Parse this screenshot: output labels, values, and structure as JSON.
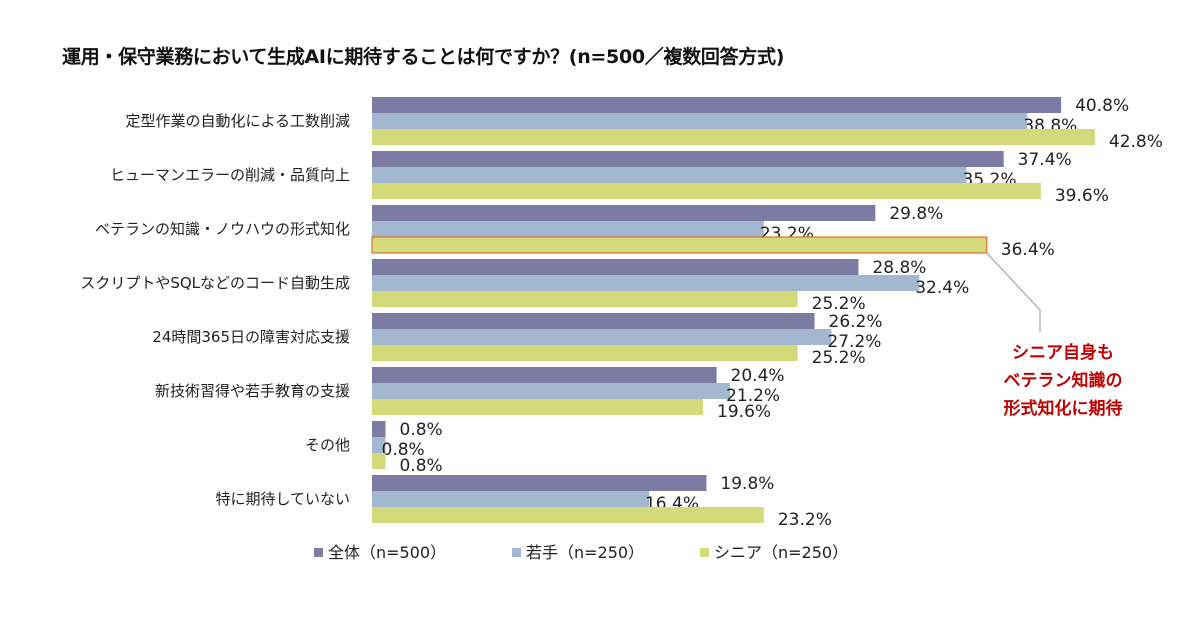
{
  "chart_data": {
    "type": "bar",
    "orientation": "horizontal",
    "title": "運用・保守業務において生成AIに期待することは何ですか？(n=500／複数回答方式)",
    "categories": [
      "定型作業の自動化による工数削減",
      "ヒューマンエラーの削減・品質向上",
      "ベテランの知識・ノウハウの形式知化",
      "スクリプトやSQLなどのコード自動生成",
      "24時間365日の障害対応支援",
      "新技術習得や若手教育の支援",
      "その他",
      "特に期待していない"
    ],
    "series": [
      {
        "name": "全体（n=500）",
        "color": "#7b7ba3",
        "values": [
          40.8,
          37.4,
          29.8,
          28.8,
          26.2,
          20.4,
          0.8,
          19.8
        ]
      },
      {
        "name": "若手（n=250）",
        "color": "#a3b7d0",
        "values": [
          38.8,
          35.2,
          23.2,
          32.4,
          27.2,
          21.2,
          0.8,
          16.4
        ]
      },
      {
        "name": "シニア（n=250）",
        "color": "#d4da7a",
        "values": [
          42.8,
          39.6,
          36.4,
          25.2,
          25.2,
          19.6,
          0.8,
          23.2
        ]
      }
    ],
    "value_suffix": "%",
    "xlim": [
      0,
      45
    ],
    "grid": false,
    "legend_position": "bottom",
    "highlight": {
      "category_index": 2,
      "series_index": 2,
      "color": "#e07030"
    },
    "annotation": {
      "lines": [
        "シニア自身も",
        "ベテラン知識の",
        "形式知化に期待"
      ],
      "color": "#c00000"
    }
  }
}
